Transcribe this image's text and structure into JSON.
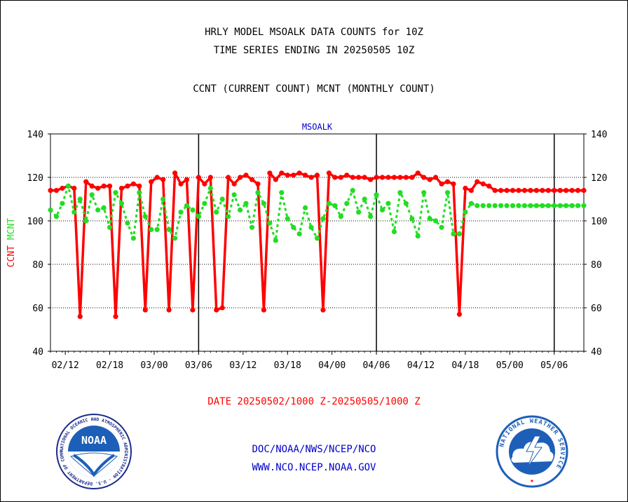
{
  "header": {
    "title_line1": "HRLY MODEL MSOALK DATA COUNTS for 10Z",
    "title_line2": "TIME SERIES ENDING IN 20250505 10Z",
    "subtitle": "CCNT (CURRENT COUNT) MCNT (MONTHLY COUNT)"
  },
  "footer": {
    "date_range": "DATE 20250502/1000 Z-20250505/1000 Z",
    "link1": "DOC/NOAA/NWS/NCEP/NCO",
    "link2": "WWW.NCO.NCEP.NOAA.GOV"
  },
  "logos": {
    "noaa_text": "NOAA",
    "noaa_ring": "NATIONAL OCEANIC AND ATMOSPHERIC ADMINISTRATION · U.S. DEPARTMENT OF COMMERCE ·",
    "nws_ring": "NATIONAL WEATHER SERVICE"
  },
  "chart_data": {
    "type": "line",
    "plot_label": "MSOALK",
    "ylabel_ccnt": "CCNT",
    "ylabel_mcnt": "MCNT",
    "ylim": [
      40,
      140
    ],
    "yticks": [
      40,
      60,
      80,
      100,
      120,
      140
    ],
    "grid_y": [
      60,
      80,
      100,
      120
    ],
    "xlim": [
      0,
      90
    ],
    "xtick_labels": [
      {
        "x": 2.5,
        "label": "02/12"
      },
      {
        "x": 10,
        "label": "02/18"
      },
      {
        "x": 17.5,
        "label": "03/00"
      },
      {
        "x": 25,
        "label": "03/06"
      },
      {
        "x": 32.5,
        "label": "03/12"
      },
      {
        "x": 40,
        "label": "03/18"
      },
      {
        "x": 47.5,
        "label": "04/00"
      },
      {
        "x": 55,
        "label": "04/06"
      },
      {
        "x": 62.5,
        "label": "04/12"
      },
      {
        "x": 70,
        "label": "04/18"
      },
      {
        "x": 77.5,
        "label": "05/00"
      },
      {
        "x": 85,
        "label": "05/06"
      }
    ],
    "day_lines": [
      25,
      55,
      85
    ],
    "colors": {
      "ccnt": "#ff0000",
      "mcnt": "#22dd22",
      "label": "#0000cc"
    },
    "series": [
      {
        "id": "ccnt",
        "x": [
          0,
          1,
          2,
          3,
          4,
          5,
          6,
          7,
          8,
          9,
          10,
          11,
          12,
          13,
          14,
          15,
          16,
          17,
          18,
          19,
          20,
          21,
          22,
          23,
          24,
          25,
          26,
          27,
          28,
          29,
          30,
          31,
          32,
          33,
          34,
          35,
          36,
          37,
          38,
          39,
          40,
          41,
          42,
          43,
          44,
          45,
          46,
          47,
          48,
          49,
          50,
          51,
          52,
          53,
          54,
          55,
          56,
          57,
          58,
          59,
          60,
          61,
          62,
          63,
          64,
          65,
          66,
          67,
          68,
          69,
          70,
          71,
          72,
          73,
          74,
          75,
          76,
          77,
          78,
          79,
          80,
          81,
          82,
          83,
          84,
          85,
          86,
          87,
          88,
          89,
          90
        ],
        "values": [
          114,
          114,
          115,
          116,
          115,
          56,
          118,
          116,
          115,
          116,
          116,
          56,
          115,
          116,
          117,
          116,
          59,
          118,
          120,
          119,
          59,
          122,
          117,
          119,
          59,
          120,
          117,
          120,
          59,
          60,
          120,
          117,
          120,
          121,
          119,
          117,
          59,
          122,
          119,
          122,
          121,
          121,
          122,
          121,
          120,
          121,
          59,
          122,
          120,
          120,
          121,
          120,
          120,
          120,
          119,
          120,
          120,
          120,
          120,
          120,
          120,
          120,
          122,
          120,
          119,
          120,
          117,
          118,
          117,
          57,
          115,
          114,
          118,
          117,
          116,
          114,
          114,
          114,
          114,
          114,
          114,
          114,
          114,
          114,
          114,
          114,
          114,
          114,
          114,
          114,
          114
        ]
      },
      {
        "id": "mcnt",
        "x": [
          0,
          1,
          2,
          3,
          4,
          5,
          6,
          7,
          8,
          9,
          10,
          11,
          12,
          13,
          14,
          15,
          16,
          17,
          18,
          19,
          20,
          21,
          22,
          23,
          24,
          25,
          26,
          27,
          28,
          29,
          30,
          31,
          32,
          33,
          34,
          35,
          36,
          37,
          38,
          39,
          40,
          41,
          42,
          43,
          44,
          45,
          46,
          47,
          48,
          49,
          50,
          51,
          52,
          53,
          54,
          55,
          56,
          57,
          58,
          59,
          60,
          61,
          62,
          63,
          64,
          65,
          66,
          67,
          68,
          69,
          70,
          71,
          72,
          73,
          74,
          75,
          76,
          77,
          78,
          79,
          80,
          81,
          82,
          83,
          84,
          85,
          86,
          87,
          88,
          89,
          90
        ],
        "values": [
          105,
          102,
          108,
          116,
          104,
          110,
          100,
          112,
          105,
          106,
          97,
          113,
          108,
          99,
          92,
          113,
          102,
          96,
          96,
          110,
          96,
          92,
          104,
          107,
          105,
          102,
          108,
          115,
          104,
          110,
          102,
          112,
          105,
          108,
          97,
          113,
          108,
          99,
          91,
          113,
          101,
          97,
          94,
          106,
          97,
          92,
          101,
          108,
          107,
          102,
          108,
          114,
          104,
          110,
          102,
          112,
          105,
          108,
          95,
          113,
          108,
          101,
          93,
          113,
          101,
          100,
          97,
          113,
          94,
          94,
          104,
          108,
          107,
          107,
          107,
          107,
          107,
          107,
          107,
          107,
          107,
          107,
          107,
          107,
          107,
          107,
          107,
          107,
          107,
          107,
          107
        ]
      }
    ]
  }
}
